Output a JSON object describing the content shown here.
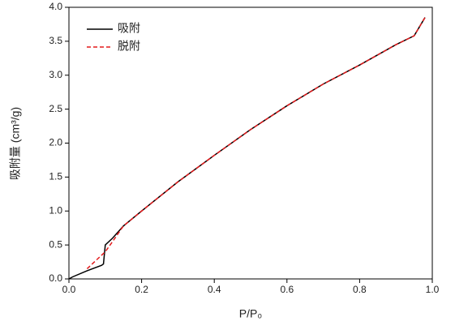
{
  "chart_data": {
    "type": "line",
    "x_label": "P/P₀",
    "y_label": "吸附量 (cm³/g)",
    "xlim": [
      0,
      1
    ],
    "ylim": [
      0,
      4
    ],
    "xticks": [
      {
        "value": 0,
        "label": "0.0"
      },
      0.2,
      0.4,
      0.6,
      0.8,
      {
        "value": 1,
        "label": "1.0"
      }
    ],
    "yticks": [
      {
        "value": 0,
        "label": "0.0"
      },
      0.5,
      {
        "value": 1,
        "label": "1.0"
      },
      1.5,
      {
        "value": 2,
        "label": "2.0"
      },
      2.5,
      {
        "value": 3,
        "label": "3.0"
      },
      3.5,
      {
        "value": 4,
        "label": "4.0"
      }
    ],
    "legend": "upper left",
    "series": [
      {
        "name": "吸附",
        "color": "#000000",
        "dash": false,
        "x": [
          0.0,
          0.01,
          0.05,
          0.09,
          0.095,
          0.1,
          0.12,
          0.15,
          0.2,
          0.3,
          0.4,
          0.5,
          0.6,
          0.7,
          0.8,
          0.9,
          0.95,
          0.98
        ],
        "values": [
          0.0,
          0.03,
          0.12,
          0.2,
          0.22,
          0.5,
          0.6,
          0.78,
          1.0,
          1.43,
          1.82,
          2.2,
          2.55,
          2.87,
          3.15,
          3.45,
          3.58,
          3.85
        ]
      },
      {
        "name": "脱附",
        "color": "#e41a1c",
        "dash": true,
        "x": [
          0.05,
          0.08,
          0.1,
          0.12,
          0.15,
          0.2,
          0.3,
          0.4,
          0.5,
          0.6,
          0.7,
          0.8,
          0.9,
          0.95,
          0.98
        ],
        "values": [
          0.15,
          0.3,
          0.4,
          0.55,
          0.78,
          1.0,
          1.43,
          1.82,
          2.2,
          2.55,
          2.87,
          3.15,
          3.45,
          3.58,
          3.85
        ]
      }
    ]
  }
}
